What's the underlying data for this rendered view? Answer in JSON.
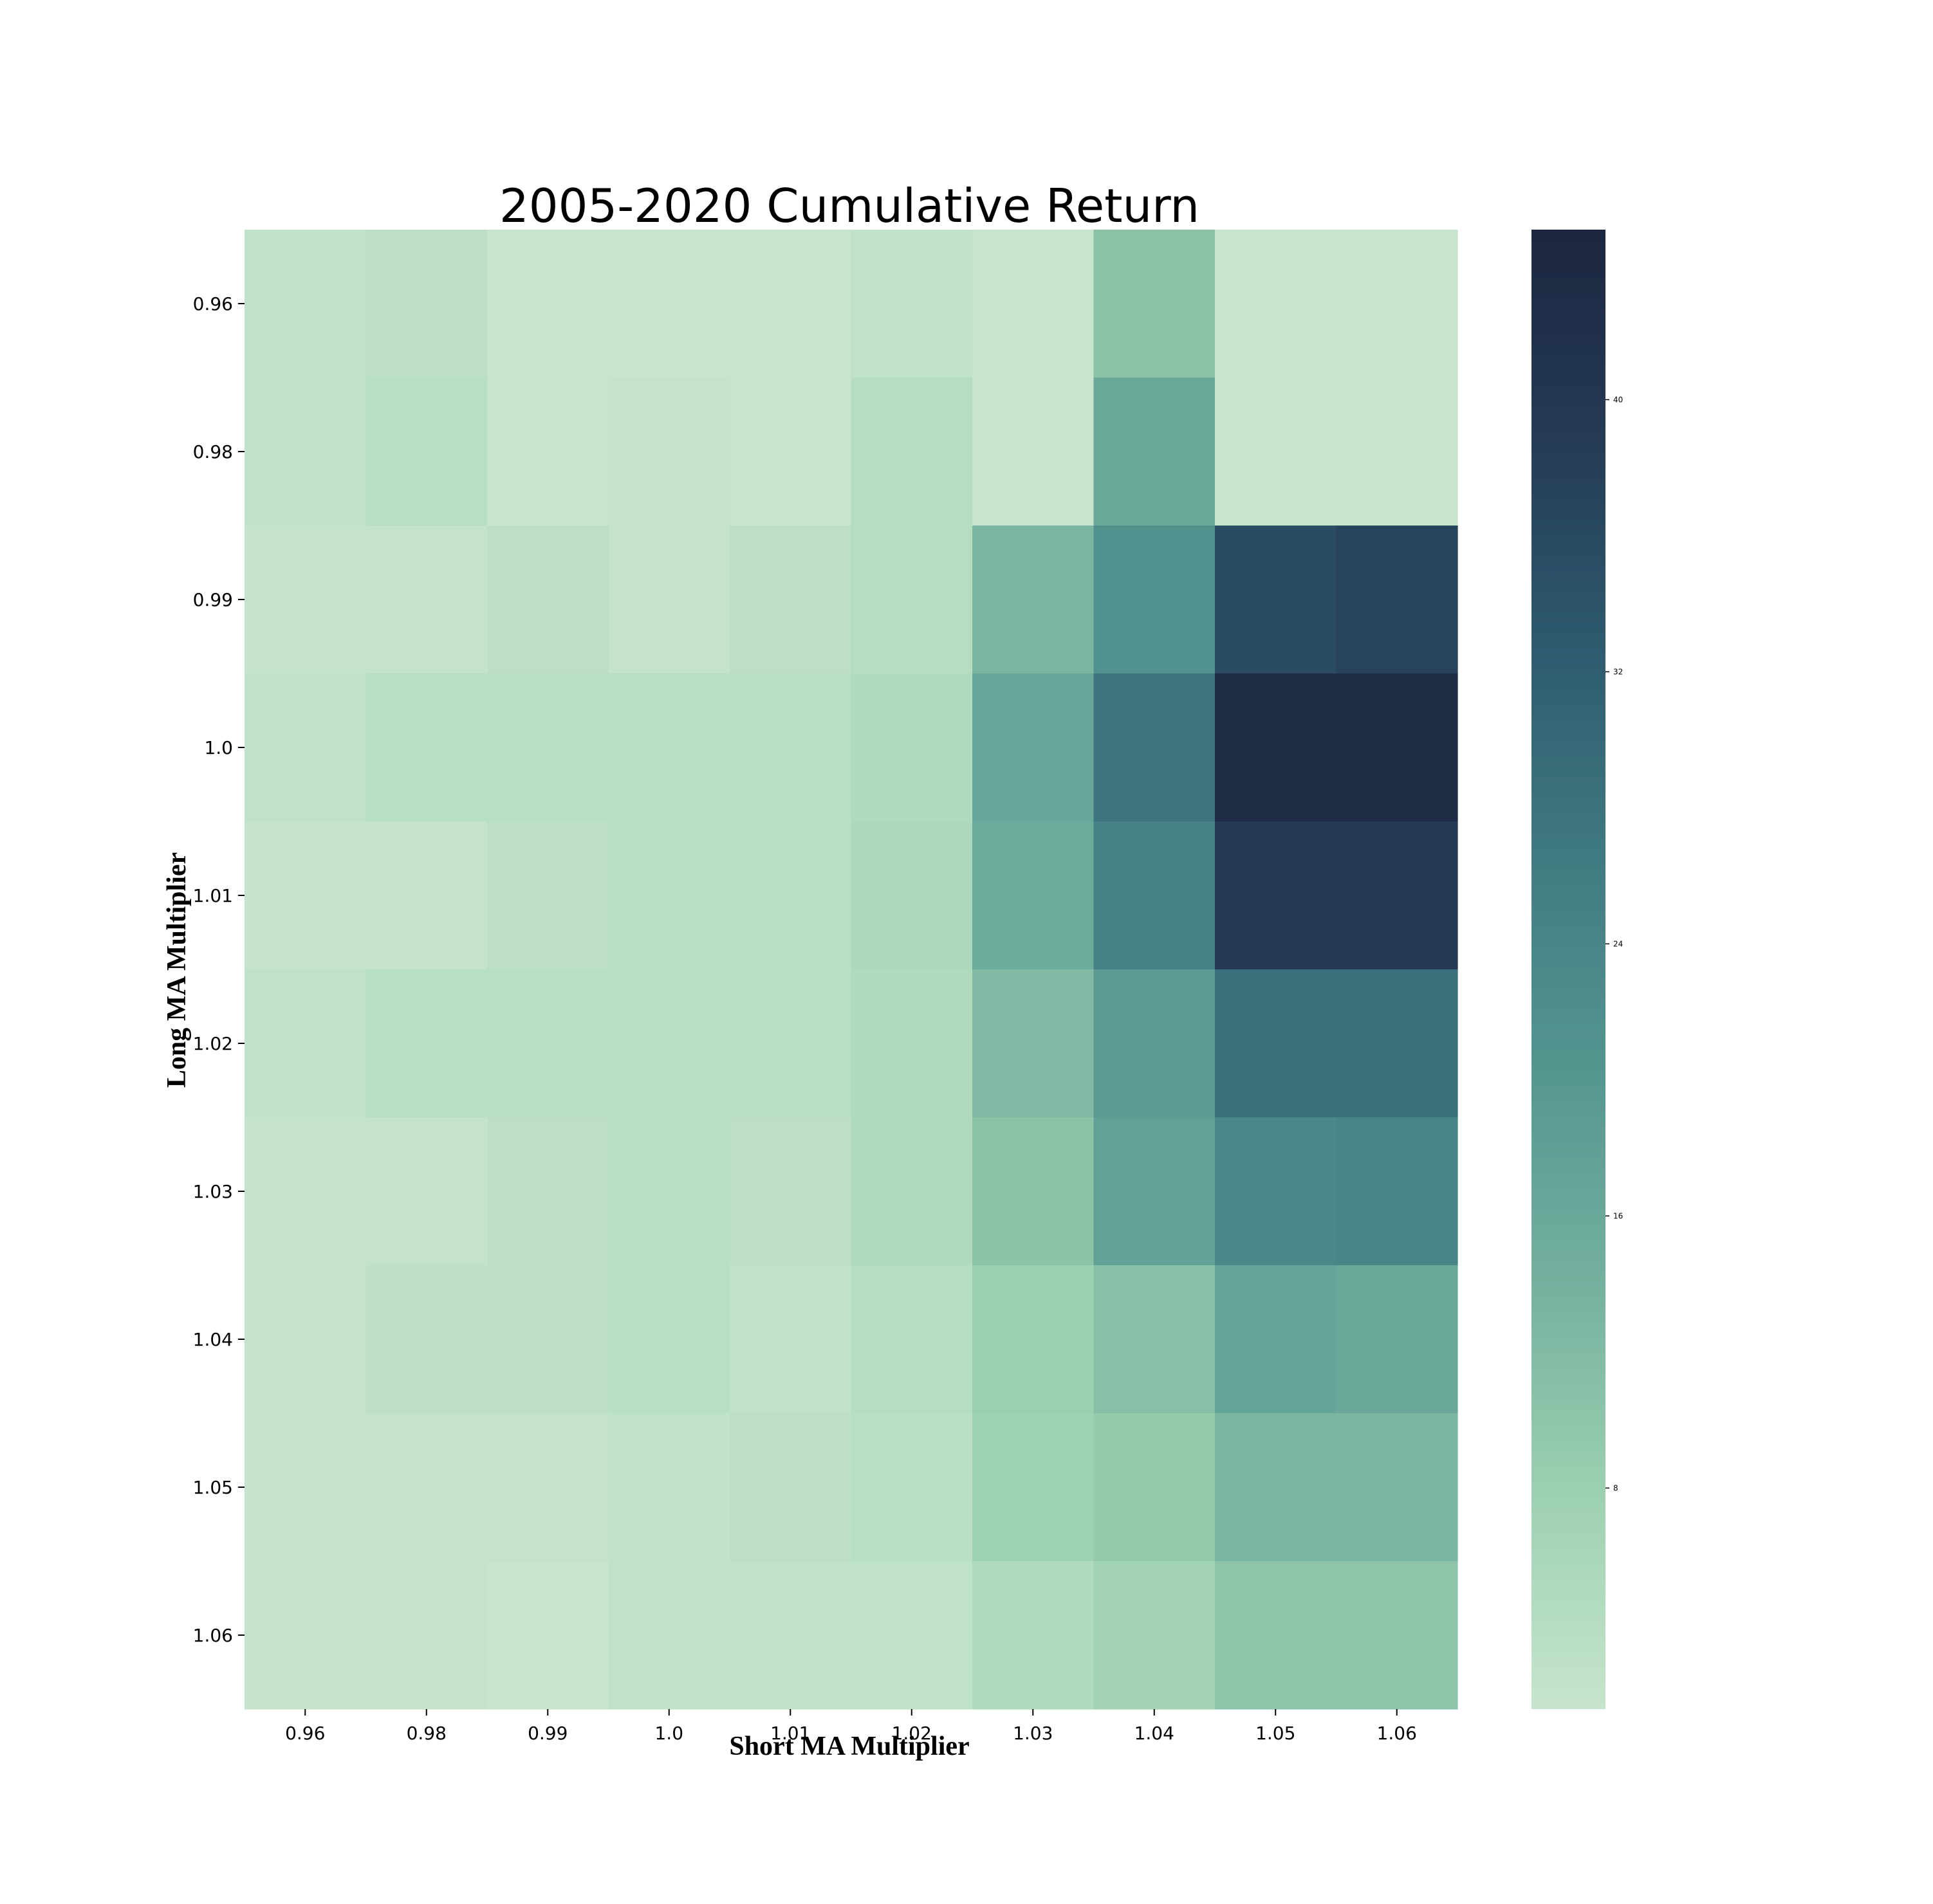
{
  "chart_data": {
    "type": "heatmap",
    "title": "2005-2020 Cumulative Return",
    "xlabel": "Short MA Multiplier",
    "ylabel": "Long MA Multiplier",
    "x_categories": [
      "0.96",
      "0.98",
      "0.99",
      "1.0",
      "1.01",
      "1.02",
      "1.03",
      "1.04",
      "1.05",
      "1.06"
    ],
    "y_categories": [
      "0.96",
      "0.98",
      "0.99",
      "1.0",
      "1.01",
      "1.02",
      "1.03",
      "1.04",
      "1.05",
      "1.06"
    ],
    "values": [
      [
        2.5,
        3.0,
        1.5,
        1.5,
        1.5,
        2.5,
        1.5,
        10.5,
        1.5,
        1.5
      ],
      [
        2.5,
        3.5,
        1.5,
        2.0,
        1.5,
        4.0,
        1.5,
        16.0,
        1.5,
        1.5
      ],
      [
        2.0,
        2.0,
        3.0,
        2.0,
        3.0,
        4.0,
        13.0,
        21.0,
        35.5,
        37.0
      ],
      [
        2.5,
        3.5,
        3.5,
        3.5,
        3.5,
        5.0,
        16.5,
        27.5,
        43.5,
        43.5
      ],
      [
        2.0,
        2.0,
        3.0,
        3.5,
        3.5,
        5.5,
        15.5,
        25.0,
        39.0,
        39.0
      ],
      [
        2.5,
        3.5,
        3.5,
        3.5,
        3.5,
        5.0,
        12.0,
        19.0,
        28.5,
        28.5
      ],
      [
        2.0,
        2.0,
        3.0,
        3.5,
        3.0,
        5.0,
        10.5,
        17.5,
        23.5,
        24.0
      ],
      [
        2.0,
        3.0,
        3.0,
        3.5,
        2.5,
        4.0,
        8.0,
        11.0,
        17.0,
        16.0
      ],
      [
        2.0,
        2.0,
        2.0,
        2.5,
        3.0,
        3.5,
        7.5,
        9.0,
        13.0,
        13.0
      ],
      [
        2.0,
        2.0,
        1.5,
        2.5,
        2.5,
        2.5,
        5.0,
        7.0,
        10.0,
        10.0
      ]
    ],
    "colorbar": {
      "min": 1.5,
      "max": 45,
      "ticks": [
        "8",
        "16",
        "24",
        "32",
        "40"
      ]
    },
    "colormap": [
      "#c7e5cc",
      "#9dd1b1",
      "#74b19f",
      "#559690",
      "#407b82",
      "#2e5b6f",
      "#253b56",
      "#1c2640"
    ]
  }
}
